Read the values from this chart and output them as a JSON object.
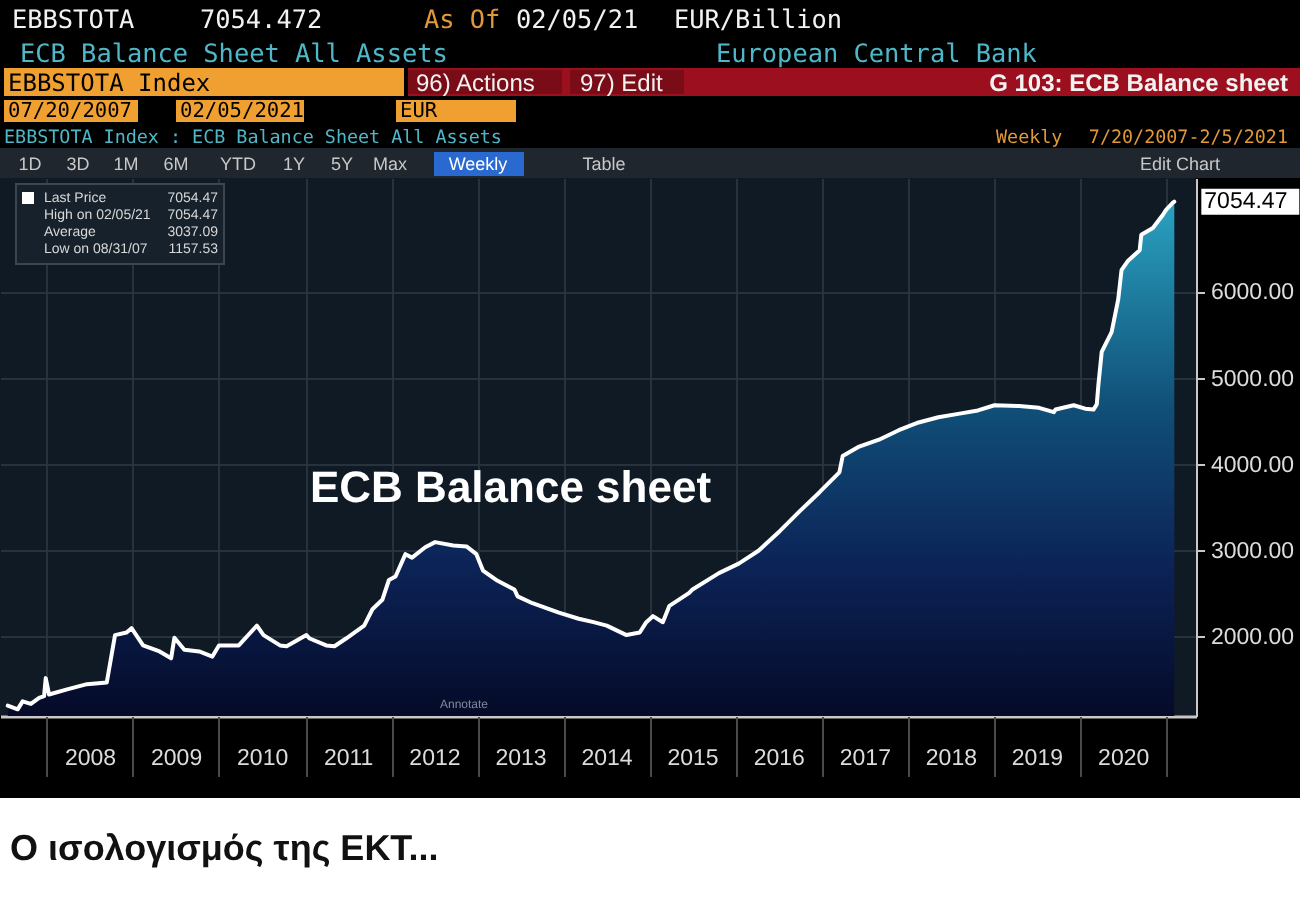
{
  "chart_data": {
    "type": "area",
    "title": "ECB Balance sheet",
    "x": [
      "2007-07-20",
      "2007-08-31",
      "2007-09-21",
      "2007-10-26",
      "2007-11-30",
      "2007-12-21",
      "2007-12-28",
      "2008-01-11",
      "2008-03-28",
      "2008-06-20",
      "2008-09-12",
      "2008-10-17",
      "2008-12-05",
      "2008-12-26",
      "2009-02-13",
      "2009-04-24",
      "2009-06-12",
      "2009-06-26",
      "2009-08-07",
      "2009-10-09",
      "2009-12-04",
      "2010-01-01",
      "2010-03-26",
      "2010-06-11",
      "2010-07-09",
      "2010-09-17",
      "2010-10-15",
      "2011-01-07",
      "2011-01-21",
      "2011-04-01",
      "2011-05-06",
      "2011-06-24",
      "2011-09-09",
      "2011-10-14",
      "2011-11-25",
      "2011-12-23",
      "2012-01-20",
      "2012-03-02",
      "2012-03-30",
      "2012-05-25",
      "2012-07-06",
      "2012-09-21",
      "2012-11-16",
      "2012-12-28",
      "2013-01-25",
      "2013-03-22",
      "2013-06-07",
      "2013-06-21",
      "2013-08-23",
      "2013-12-13",
      "2014-03-07",
      "2014-05-09",
      "2014-07-04",
      "2014-09-26",
      "2014-11-21",
      "2014-12-19",
      "2015-01-16",
      "2015-02-27",
      "2015-03-27",
      "2015-06-19",
      "2015-07-03",
      "2015-10-23",
      "2016-01-15",
      "2016-04-08",
      "2016-07-08",
      "2016-09-30",
      "2016-12-23",
      "2017-03-17",
      "2017-03-31",
      "2017-06-09",
      "2017-09-01",
      "2017-11-24",
      "2018-02-16",
      "2018-05-11",
      "2018-08-03",
      "2018-10-26",
      "2019-01-04",
      "2019-04-19",
      "2019-07-12",
      "2019-09-13",
      "2019-09-20",
      "2019-12-06",
      "2020-01-24",
      "2020-02-28",
      "2020-03-13",
      "2020-03-20",
      "2020-04-03",
      "2020-05-15",
      "2020-06-12",
      "2020-06-26",
      "2020-07-24",
      "2020-09-11",
      "2020-09-18",
      "2020-11-06",
      "2020-12-18",
      "2021-01-01",
      "2021-01-29",
      "2021-02-05"
    ],
    "series": [
      {
        "name": "Last Price",
        "color": "#ffffff",
        "values": [
          1200,
          1157.53,
          1250,
          1220,
          1290,
          1310,
          1520,
          1330,
          1390,
          1450,
          1470,
          2020,
          2050,
          2100,
          1900,
          1830,
          1750,
          1990,
          1850,
          1830,
          1770,
          1900,
          1900,
          2130,
          2020,
          1900,
          1890,
          2020,
          1980,
          1900,
          1890,
          1980,
          2130,
          2320,
          2430,
          2660,
          2700,
          2960,
          2920,
          3040,
          3100,
          3060,
          3050,
          2960,
          2770,
          2660,
          2550,
          2470,
          2390,
          2280,
          2210,
          2170,
          2130,
          2020,
          2050,
          2170,
          2240,
          2170,
          2360,
          2510,
          2550,
          2740,
          2850,
          3000,
          3230,
          3460,
          3680,
          3910,
          4100,
          4210,
          4290,
          4400,
          4490,
          4550,
          4590,
          4630,
          4690,
          4680,
          4660,
          4610,
          4640,
          4690,
          4650,
          4640,
          4700,
          4930,
          5310,
          5540,
          5920,
          6260,
          6370,
          6490,
          6670,
          6750,
          6900,
          6960,
          7040,
          7054.47
        ]
      }
    ],
    "xlim": [
      "2007-06-17",
      "2021-05-08"
    ],
    "xticks": [
      {
        "value": "2008-01-01",
        "label": null
      },
      {
        "value": "2008-07-01",
        "label": "2008"
      },
      {
        "value": "2009-01-01",
        "label": null
      },
      {
        "value": "2009-07-01",
        "label": "2009"
      },
      {
        "value": "2010-01-01",
        "label": null
      },
      {
        "value": "2010-07-01",
        "label": "2010"
      },
      {
        "value": "2011-01-01",
        "label": null
      },
      {
        "value": "2011-07-01",
        "label": "2011"
      },
      {
        "value": "2012-01-01",
        "label": null
      },
      {
        "value": "2012-07-01",
        "label": "2012"
      },
      {
        "value": "2013-01-01",
        "label": null
      },
      {
        "value": "2013-07-01",
        "label": "2013"
      },
      {
        "value": "2014-01-01",
        "label": null
      },
      {
        "value": "2014-07-01",
        "label": "2014"
      },
      {
        "value": "2015-01-01",
        "label": null
      },
      {
        "value": "2015-07-01",
        "label": "2015"
      },
      {
        "value": "2016-01-01",
        "label": null
      },
      {
        "value": "2016-07-01",
        "label": "2016"
      },
      {
        "value": "2017-01-01",
        "label": null
      },
      {
        "value": "2017-07-01",
        "label": "2017"
      },
      {
        "value": "2018-01-01",
        "label": null
      },
      {
        "value": "2018-07-01",
        "label": "2018"
      },
      {
        "value": "2019-01-01",
        "label": null
      },
      {
        "value": "2019-07-01",
        "label": "2019"
      },
      {
        "value": "2020-01-01",
        "label": null
      },
      {
        "value": "2020-07-01",
        "label": "2020"
      },
      {
        "value": "2021-01-01",
        "label": null
      }
    ],
    "ylim": [
      1080,
      7330
    ],
    "yticks": [
      {
        "value": 2000,
        "label": "2000.00"
      },
      {
        "value": 3000,
        "label": "3000.00"
      },
      {
        "value": 4000,
        "label": "4000.00"
      },
      {
        "value": 5000,
        "label": "5000.00"
      },
      {
        "value": 6000,
        "label": "6000.00"
      }
    ],
    "grid": true,
    "legend": "top left",
    "annotations": [
      "EBBSTOTA",
      "7054.472",
      "As Of",
      "02/05/21",
      "EUR/Billion",
      "ECB Balance Sheet All Assets",
      "European Central Bank",
      "EBBSTOTA Index",
      "96) Actions",
      "97) Edit",
      "G 103: ECB Balance sheet",
      "07/20/2007",
      "02/05/2021",
      "EUR",
      "EBBSTOTA Index : ECB Balance Sheet All Assets",
      "Weekly",
      "7/20/2007-2/5/2021",
      "1D",
      "3D",
      "1M",
      "6M",
      "YTD",
      "1Y",
      "5Y",
      "Max",
      "Weekly",
      "Table",
      "Edit Chart",
      "7054.47",
      "High on 02/05/21",
      "7054.47",
      "Average",
      "3037.09",
      "Low on 08/31/07",
      "1157.53",
      "Annotate",
      "Ο ισολογισμός της ΕΚΤ...",
      {
        "text": "7054.47",
        "x": "2021-02-05",
        "y": 7054.47
      }
    ]
  }
}
